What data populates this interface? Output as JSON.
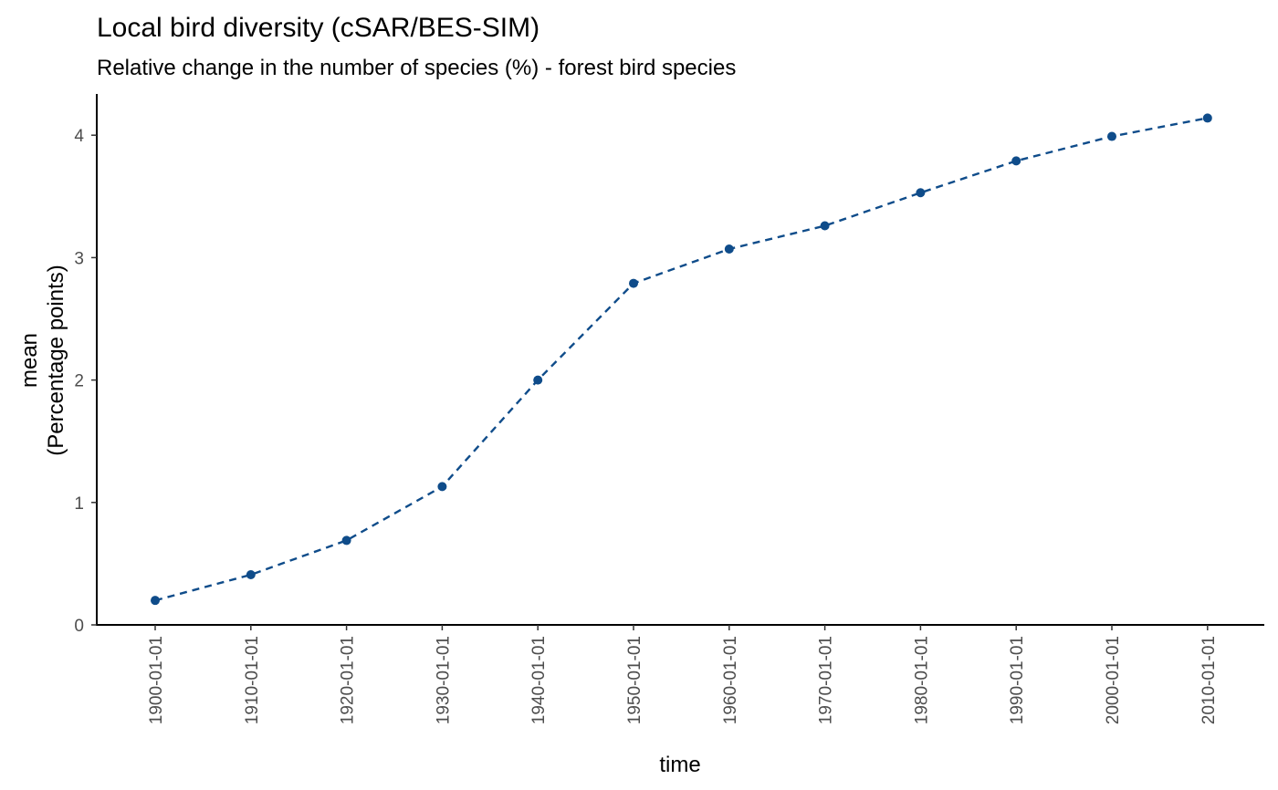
{
  "chart_data": {
    "type": "line",
    "title": "Local bird diversity (cSAR/BES-SIM)",
    "subtitle": "Relative change in the number of species (%) - forest bird species",
    "xlabel": "time",
    "ylabel_lines": [
      "mean",
      "(Percentage points)"
    ],
    "x": [
      "1900-01-01",
      "1910-01-01",
      "1920-01-01",
      "1930-01-01",
      "1940-01-01",
      "1950-01-01",
      "1960-01-01",
      "1970-01-01",
      "1980-01-01",
      "1990-01-01",
      "2000-01-01",
      "2010-01-01"
    ],
    "series": [
      {
        "values": [
          0.2,
          0.41,
          0.69,
          1.13,
          2.0,
          2.79,
          3.07,
          3.26,
          3.53,
          3.79,
          3.99,
          4.14
        ],
        "color": "#0f4c8a",
        "line_style": "dashed",
        "markers": true
      }
    ],
    "yticks": [
      "0",
      "1",
      "2",
      "3",
      "4"
    ],
    "ylim": [
      0,
      4.3
    ],
    "grid": false,
    "legend": "none",
    "x_tick_rotation": "vertical"
  }
}
